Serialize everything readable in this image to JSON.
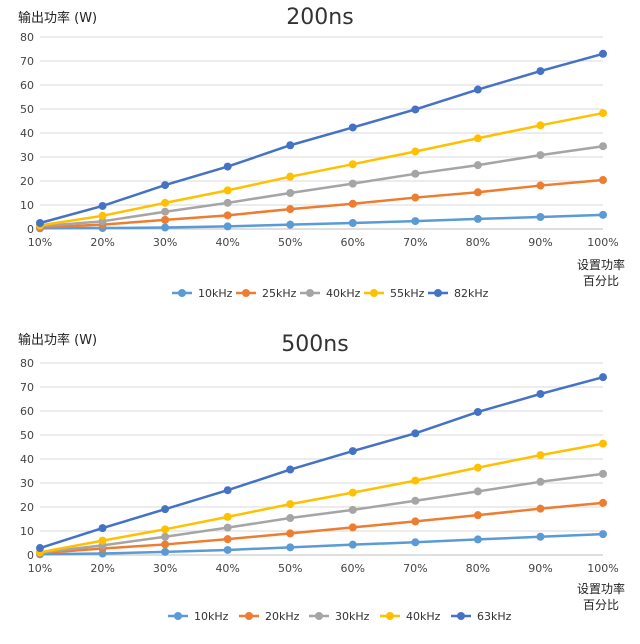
{
  "chart_data": [
    {
      "type": "line",
      "title": "200ns",
      "ylabel": "输出功率 (W)",
      "xlabel_line1": "设置功率",
      "xlabel_line2": "百分比",
      "categories": [
        "10%",
        "20%",
        "30%",
        "40%",
        "50%",
        "60%",
        "70%",
        "80%",
        "90%",
        "100%"
      ],
      "ylim": [
        0,
        80
      ],
      "yticks": [
        0,
        10,
        20,
        30,
        40,
        50,
        60,
        70,
        80
      ],
      "grid": true,
      "legend_position": "bottom",
      "series": [
        {
          "name": "10kHz",
          "color": "#5B9BD5",
          "values": [
            0.3,
            0.4,
            0.6,
            1.1,
            1.8,
            2.5,
            3.3,
            4.2,
            5.0,
            5.9
          ]
        },
        {
          "name": "25kHz",
          "color": "#ED7D31",
          "values": [
            0.6,
            1.8,
            3.8,
            5.7,
            8.3,
            10.5,
            13.1,
            15.3,
            18.1,
            20.4
          ]
        },
        {
          "name": "40kHz",
          "color": "#A5A5A5",
          "values": [
            1.2,
            3.2,
            7.2,
            10.9,
            15.0,
            18.9,
            23.0,
            26.6,
            30.8,
            34.5
          ]
        },
        {
          "name": "55kHz",
          "color": "#FFC000",
          "values": [
            1.5,
            5.5,
            10.9,
            16.1,
            21.8,
            27.0,
            32.3,
            37.8,
            43.2,
            48.3
          ]
        },
        {
          "name": "82kHz",
          "color": "#4472C4",
          "values": [
            2.5,
            9.6,
            18.3,
            26.0,
            34.9,
            42.3,
            49.8,
            58.1,
            65.8,
            73.0
          ]
        }
      ]
    },
    {
      "type": "line",
      "title": "500ns",
      "ylabel": "输出功率 (W)",
      "xlabel_line1": "设置功率",
      "xlabel_line2": "百分比",
      "categories": [
        "10%",
        "20%",
        "30%",
        "40%",
        "50%",
        "60%",
        "70%",
        "80%",
        "90%",
        "100%"
      ],
      "ylim": [
        0,
        80
      ],
      "yticks": [
        0,
        10,
        20,
        30,
        40,
        50,
        60,
        70,
        80
      ],
      "grid": true,
      "legend_position": "bottom",
      "series": [
        {
          "name": "10kHz",
          "color": "#5B9BD5",
          "values": [
            0.3,
            0.6,
            1.3,
            2.1,
            3.2,
            4.3,
            5.3,
            6.5,
            7.6,
            8.7
          ]
        },
        {
          "name": "20kHz",
          "color": "#ED7D31",
          "values": [
            0.8,
            2.7,
            4.4,
            6.6,
            9.0,
            11.5,
            14.0,
            16.6,
            19.3,
            21.7
          ]
        },
        {
          "name": "30kHz",
          "color": "#A5A5A5",
          "values": [
            1.0,
            4.0,
            7.6,
            11.4,
            15.4,
            18.8,
            22.6,
            26.5,
            30.5,
            33.8
          ]
        },
        {
          "name": "40kHz",
          "color": "#FFC000",
          "values": [
            1.1,
            6.0,
            10.7,
            15.9,
            21.2,
            26.0,
            31.0,
            36.4,
            41.6,
            46.4
          ]
        },
        {
          "name": "63kHz",
          "color": "#4472C4",
          "values": [
            2.9,
            11.2,
            19.1,
            27.0,
            35.6,
            43.3,
            50.7,
            59.6,
            67.1,
            74.1
          ]
        }
      ]
    }
  ]
}
